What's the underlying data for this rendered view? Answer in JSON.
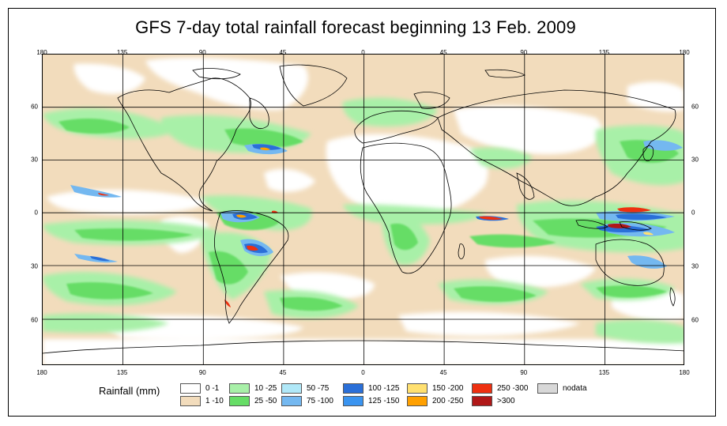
{
  "title": "GFS 7-day total rainfall forecast beginning 13 Feb. 2009",
  "lon_ticks": [
    "180",
    "135",
    "90",
    "45",
    "0",
    "45",
    "90",
    "135",
    "180"
  ],
  "lat_ticks": [
    "60",
    "30",
    "0",
    "30",
    "60"
  ],
  "legend": {
    "label": "Rainfall (mm)",
    "items": [
      {
        "label": "0 -1",
        "color": "#ffffff"
      },
      {
        "label": "1 -10",
        "color": "#f2dcbc"
      },
      {
        "label": "10 -25",
        "color": "#a8f0a8"
      },
      {
        "label": "25 -50",
        "color": "#66dd66"
      },
      {
        "label": "50 -75",
        "color": "#b0e8f8"
      },
      {
        "label": "75 -100",
        "color": "#74b8f0"
      },
      {
        "label": "100 -125",
        "color": "#2a6fd8"
      },
      {
        "label": "125 -150",
        "color": "#3a94f0"
      },
      {
        "label": "150 -200",
        "color": "#ffe070"
      },
      {
        "label": "200 -250",
        "color": "#ffa000"
      },
      {
        "label": "250 -300",
        "color": "#ee3010"
      },
      {
        "label": ">300",
        "color": "#b01818"
      },
      {
        "label": "nodata",
        "color": "#d8d8d8"
      }
    ]
  }
}
